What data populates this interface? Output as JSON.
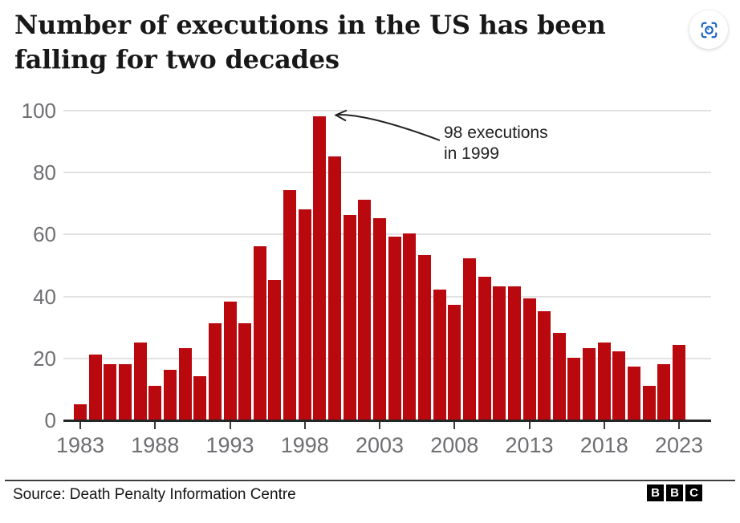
{
  "header": {
    "title_line1": "Number of executions in the US has been",
    "title_line2": "falling for two decades"
  },
  "chart_data": {
    "type": "bar",
    "title": "Number of executions in the US has been falling for two decades",
    "xlabel": "",
    "ylabel": "",
    "ylim": [
      0,
      100
    ],
    "grid": true,
    "x": [
      1983,
      1984,
      1985,
      1986,
      1987,
      1988,
      1989,
      1990,
      1991,
      1992,
      1993,
      1994,
      1995,
      1996,
      1997,
      1998,
      1999,
      2000,
      2001,
      2002,
      2003,
      2004,
      2005,
      2006,
      2007,
      2008,
      2009,
      2010,
      2011,
      2012,
      2013,
      2014,
      2015,
      2016,
      2017,
      2018,
      2019,
      2020,
      2021,
      2022,
      2023
    ],
    "values": [
      5,
      21,
      18,
      18,
      25,
      11,
      16,
      23,
      14,
      31,
      38,
      31,
      56,
      45,
      74,
      68,
      98,
      85,
      66,
      71,
      65,
      59,
      60,
      53,
      42,
      37,
      52,
      46,
      43,
      43,
      39,
      35,
      28,
      20,
      23,
      25,
      22,
      17,
      11,
      18,
      24
    ],
    "yticks": [
      0,
      20,
      40,
      60,
      80,
      100
    ],
    "xticks": [
      1983,
      1988,
      1993,
      1998,
      2003,
      2008,
      2013,
      2018,
      2023
    ],
    "annotation": {
      "line1": "98 executions",
      "line2": "in 1999",
      "target_year": 1999,
      "target_value": 98
    }
  },
  "colors": {
    "bar_red": "#b9090f",
    "icon_blue": "#1d66c4",
    "axis_text": "#6e6e73",
    "gridline": "#e2e2e2",
    "baseline": "#262626"
  },
  "footer": {
    "source": "Source: Death Penalty Information Centre",
    "logo_letters": [
      "B",
      "B",
      "C"
    ]
  }
}
